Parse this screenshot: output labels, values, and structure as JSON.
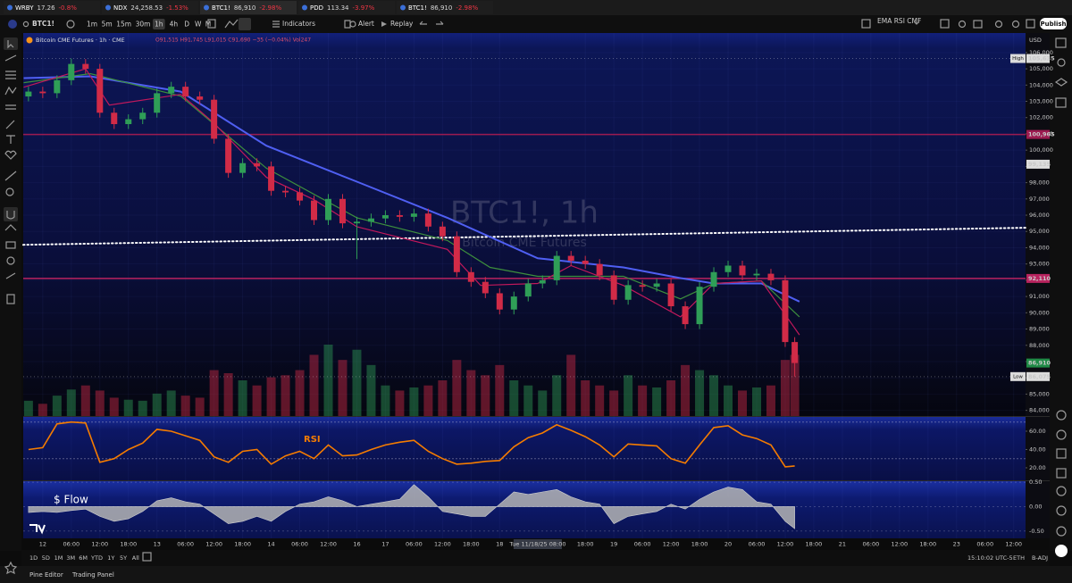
{
  "tabs": [
    {
      "symbol": "WRBY",
      "price": "17.26",
      "change": "-0.8%"
    },
    {
      "symbol": "NDX",
      "price": "24,258.53",
      "change": "-1.53%"
    },
    {
      "symbol": "BTC1!",
      "price": "86,910",
      "change": "-2.98%"
    },
    {
      "symbol": "PDD",
      "price": "113.34",
      "change": "-3.97%"
    },
    {
      "symbol": "BTC1!",
      "price": "86,910",
      "change": "-2.98%"
    }
  ],
  "toolbar": {
    "symbol": "BTC1!",
    "intervals": [
      "1m",
      "5m",
      "15m",
      "30m",
      "1h",
      "4h",
      "D",
      "W",
      "M"
    ],
    "active_interval": 4,
    "indicators": "Indicators",
    "alert": "Alert",
    "replay": "Replay",
    "layout": "EMA RSI CMF",
    "publish": "Publish"
  },
  "chart_data": {
    "type": "candlestick",
    "legend": "Bitcoin CME Futures · 1h · CME",
    "ohlc_text": "O91,515 H91,745 L91,015 C91,690 −35 (−0.04%) Vol247",
    "currency": "USD",
    "watermark": "BTC1!, 1h",
    "watermark_sub": "Bitcoin CME Futures",
    "xlim": [
      -4.1,
      206.5
    ],
    "xticks": [
      {
        "value": 0,
        "label": "12"
      },
      {
        "value": 6,
        "label": "06:00"
      },
      {
        "value": 12,
        "label": "12:00"
      },
      {
        "value": 18,
        "label": "18:00"
      },
      {
        "value": 24,
        "label": "13"
      },
      {
        "value": 30,
        "label": "06:00"
      },
      {
        "value": 36,
        "label": "12:00"
      },
      {
        "value": 42,
        "label": "18:00"
      },
      {
        "value": 48,
        "label": "14"
      },
      {
        "value": 54,
        "label": "06:00"
      },
      {
        "value": 60,
        "label": "12:00"
      },
      {
        "value": 66,
        "label": "16"
      },
      {
        "value": 72,
        "label": "17"
      },
      {
        "value": 78,
        "label": "06:00"
      },
      {
        "value": 84,
        "label": "12:00"
      },
      {
        "value": 90,
        "label": "18:00"
      },
      {
        "value": 96,
        "label": "18"
      },
      {
        "value": 114,
        "label": "18:00"
      },
      {
        "value": 120,
        "label": "19"
      },
      {
        "value": 126,
        "label": "06:00"
      },
      {
        "value": 132,
        "label": "12:00"
      },
      {
        "value": 138,
        "label": "18:00"
      },
      {
        "value": 144,
        "label": "20"
      },
      {
        "value": 150,
        "label": "06:00"
      },
      {
        "value": 156,
        "label": "12:00"
      },
      {
        "value": 162,
        "label": "18:00"
      },
      {
        "value": 168,
        "label": "21"
      },
      {
        "value": 174,
        "label": "06:00"
      },
      {
        "value": 180,
        "label": "12:00"
      },
      {
        "value": 186,
        "label": "18:00"
      },
      {
        "value": 192,
        "label": "23"
      },
      {
        "value": 198,
        "label": "06:00"
      },
      {
        "value": 204,
        "label": "12:00"
      }
    ],
    "crosshair_x": {
      "value": 104,
      "label": "Tue 11/18/25 08:00"
    },
    "ylim": [
      83650,
      107200
    ],
    "yticks": [
      {
        "value": 84000,
        "label": "84,000"
      },
      {
        "value": 85000,
        "label": "85,000"
      },
      {
        "value": 86000,
        "label": "86,000"
      },
      {
        "value": 87000,
        "label": "87,000"
      },
      {
        "value": 88000,
        "label": "88,000"
      },
      {
        "value": 89000,
        "label": "89,000"
      },
      {
        "value": 90000,
        "label": "90,000"
      },
      {
        "value": 91000,
        "label": "91,000"
      },
      {
        "value": 92000,
        "label": "92,000"
      },
      {
        "value": 93000,
        "label": "93,000"
      },
      {
        "value": 94000,
        "label": "94,000"
      },
      {
        "value": 95000,
        "label": "95,000"
      },
      {
        "value": 96000,
        "label": "96,000"
      },
      {
        "value": 97000,
        "label": "97,000"
      },
      {
        "value": 98000,
        "label": "98,000"
      },
      {
        "value": 99000,
        "label": "99,000"
      },
      {
        "value": 100000,
        "label": "100,000"
      },
      {
        "value": 101000,
        "label": "101,000"
      },
      {
        "value": 102000,
        "label": "102,000"
      },
      {
        "value": 103000,
        "label": "103,000"
      },
      {
        "value": 104000,
        "label": "104,000"
      },
      {
        "value": 105000,
        "label": "105,000"
      },
      {
        "value": 106000,
        "label": "106,000"
      }
    ],
    "grid": true,
    "up_color": "#2f9e57",
    "down_color": "#d12b47",
    "candles": {
      "x": [
        -3,
        0,
        3,
        6,
        9,
        12,
        15,
        18,
        21,
        24,
        27,
        30,
        33,
        36,
        39,
        42,
        45,
        48,
        51,
        54,
        57,
        60,
        63,
        66,
        69,
        72,
        75,
        78,
        81,
        84,
        87,
        90,
        93,
        96,
        99,
        102,
        105,
        108,
        111,
        114,
        117,
        120,
        123,
        126,
        129,
        132,
        135,
        138,
        141,
        144,
        147,
        150,
        153,
        156,
        158
      ],
      "open": [
        103300,
        103600,
        103500,
        104300,
        105300,
        105000,
        102300,
        101600,
        101900,
        102300,
        103500,
        103900,
        103300,
        103100,
        100700,
        98600,
        99200,
        99000,
        97500,
        97400,
        96900,
        95700,
        97000,
        95500,
        95600,
        95800,
        96000,
        95900,
        96100,
        95300,
        94700,
        92500,
        91900,
        91200,
        90200,
        91000,
        91800,
        92000,
        93500,
        93200,
        93000,
        92300,
        90800,
        91700,
        91600,
        91800,
        90400,
        89300,
        91600,
        92500,
        92900,
        92300,
        92400,
        92000,
        88200
      ],
      "high": [
        103900,
        103900,
        104600,
        105635,
        105600,
        105300,
        102600,
        102200,
        102600,
        103800,
        104200,
        104200,
        103600,
        103400,
        101000,
        99500,
        99500,
        99300,
        97800,
        97700,
        97200,
        97300,
        97300,
        95900,
        96100,
        96300,
        96300,
        96400,
        96400,
        95600,
        95000,
        92800,
        92200,
        91500,
        91300,
        92100,
        92300,
        93800,
        93800,
        93500,
        93300,
        92600,
        92000,
        92000,
        92100,
        92100,
        90700,
        91900,
        92800,
        93200,
        93200,
        92700,
        92700,
        92300,
        88500
      ],
      "low": [
        103000,
        103200,
        103200,
        104000,
        104700,
        102000,
        101300,
        101300,
        101600,
        102000,
        103200,
        103000,
        102800,
        100400,
        98300,
        98300,
        98700,
        97200,
        97100,
        96600,
        95400,
        95400,
        95200,
        93300,
        95300,
        95500,
        95600,
        95600,
        95000,
        94400,
        92200,
        91600,
        90900,
        89900,
        89900,
        90700,
        91500,
        91700,
        92900,
        92700,
        92000,
        90500,
        90500,
        91300,
        91300,
        90100,
        89000,
        89000,
        91300,
        92200,
        92000,
        92000,
        91700,
        87900,
        86075
      ],
      "close": [
        103600,
        103500,
        104300,
        105300,
        105000,
        102300,
        101600,
        101900,
        102300,
        103500,
        103900,
        103300,
        103100,
        100700,
        98600,
        99200,
        99000,
        97500,
        97400,
        96900,
        95700,
        97000,
        95500,
        95600,
        95800,
        96000,
        95900,
        96100,
        95300,
        94700,
        92500,
        91900,
        91200,
        90200,
        91000,
        91800,
        92000,
        93500,
        93200,
        93000,
        92300,
        90800,
        91700,
        91600,
        91800,
        90400,
        89300,
        91600,
        92500,
        92900,
        92300,
        92400,
        92000,
        88200,
        86910
      ],
      "volume": [
        150,
        120,
        200,
        260,
        300,
        250,
        180,
        160,
        150,
        220,
        250,
        200,
        180,
        450,
        420,
        350,
        300,
        380,
        400,
        450,
        600,
        700,
        550,
        650,
        500,
        300,
        250,
        280,
        300,
        350,
        550,
        450,
        400,
        500,
        350,
        300,
        250,
        400,
        600,
        350,
        300,
        250,
        400,
        300,
        280,
        350,
        500,
        450,
        400,
        300,
        250,
        280,
        300,
        550,
        600
      ]
    },
    "series": [
      {
        "color": "#4f5ff2",
        "x": [
          -4,
          10,
          29,
          47,
          66,
          85,
          104,
          122,
          134,
          141,
          151,
          159
        ],
        "values": [
          104430,
          104540,
          103600,
          100270,
          98060,
          95840,
          93350,
          92790,
          92130,
          91800,
          91800,
          90690
        ]
      },
      {
        "color": "#3d8f3d",
        "x": [
          -4,
          10,
          29,
          47,
          66,
          85,
          94,
          104,
          122,
          134,
          141,
          151,
          159
        ],
        "values": [
          104150,
          104700,
          103320,
          98890,
          95840,
          94450,
          92790,
          92240,
          92240,
          90850,
          91800,
          91960,
          89750
        ]
      },
      {
        "color": "#c2185b",
        "x": [
          -4,
          9,
          14,
          29,
          36,
          47,
          57,
          66,
          85,
          92,
          104,
          111,
          122,
          134,
          141,
          151,
          159
        ],
        "values": [
          103870,
          105000,
          102770,
          103430,
          101660,
          98330,
          96950,
          95290,
          93900,
          91680,
          91800,
          92900,
          91680,
          89750,
          91800,
          91960,
          88640
        ]
      }
    ],
    "trendline": {
      "x": [
        -4.1,
        206.5
      ],
      "values": [
        94180,
        95230
      ],
      "color": "#ffffff"
    },
    "price_labels": [
      {
        "tag": "High",
        "value": 105635,
        "label": "105,635",
        "color": "#dcdcdc",
        "line": "dotted"
      },
      {
        "value": 100965,
        "label": "100,965",
        "color": "#9c1b50",
        "line": "solid"
      },
      {
        "value": 99135,
        "label": "99,135",
        "color": "#dcdcdc"
      },
      {
        "value": 92110,
        "label": "92,110",
        "color": "#b8235f",
        "line": "solid"
      },
      {
        "value": 86910,
        "label": "86,910",
        "color": "#1f8a46"
      },
      {
        "tag": "Low",
        "value": 86075,
        "label": "86,075",
        "color": "#dcdcdc",
        "line": "dotted"
      }
    ],
    "rsi": {
      "title": "RSI",
      "color": "#f57c00",
      "ylim": [
        6.3,
        75.6
      ],
      "bands": [
        30,
        70
      ],
      "yticks": [
        {
          "value": 20,
          "label": "20.00"
        },
        {
          "value": 40,
          "label": "40.00"
        },
        {
          "value": 60,
          "label": "60.00"
        }
      ],
      "values": [
        40,
        42,
        68,
        70,
        69,
        26,
        30,
        40,
        47,
        62,
        60,
        55,
        50,
        32,
        26,
        38,
        40,
        24,
        33,
        38,
        30,
        45,
        33,
        34,
        40,
        45,
        48,
        50,
        38,
        30,
        24,
        25,
        27,
        28,
        43,
        53,
        58,
        67,
        61,
        54,
        45,
        32,
        46,
        45,
        44,
        30,
        25,
        45,
        64,
        66,
        56,
        52,
        45,
        21,
        22
      ]
    },
    "flow": {
      "title": "$ Flow",
      "color": "#b4b4b4",
      "ylim": [
        -0.65,
        0.52
      ],
      "yticks": [
        {
          "value": 0.5,
          "label": "0.50"
        },
        {
          "value": 0,
          "label": "0.00"
        },
        {
          "value": -0.5,
          "label": "-0.50"
        }
      ],
      "values": [
        -0.12,
        -0.1,
        -0.12,
        -0.08,
        -0.05,
        -0.2,
        -0.3,
        -0.25,
        -0.1,
        0.12,
        0.18,
        0.1,
        0.05,
        -0.15,
        -0.35,
        -0.3,
        -0.2,
        -0.3,
        -0.1,
        0.05,
        0.1,
        0.2,
        0.12,
        0.0,
        0.05,
        0.1,
        0.15,
        0.45,
        0.2,
        -0.1,
        -0.15,
        -0.2,
        -0.2,
        0.05,
        0.3,
        0.25,
        0.3,
        0.35,
        0.2,
        0.1,
        0.05,
        -0.35,
        -0.2,
        -0.15,
        -0.1,
        0.05,
        -0.05,
        0.15,
        0.3,
        0.4,
        0.35,
        0.1,
        0.05,
        -0.3,
        -0.45
      ]
    }
  },
  "bottom_bar": {
    "ranges": [
      "1D",
      "5D",
      "1M",
      "3M",
      "6M",
      "YTD",
      "1Y",
      "5Y",
      "All"
    ],
    "clock": "15:10:02 UTC-5",
    "session": "ETH",
    "adjust": "B-ADJ"
  },
  "footer": {
    "pine_editor": "Pine Editor",
    "trading_panel": "Trading Panel"
  }
}
